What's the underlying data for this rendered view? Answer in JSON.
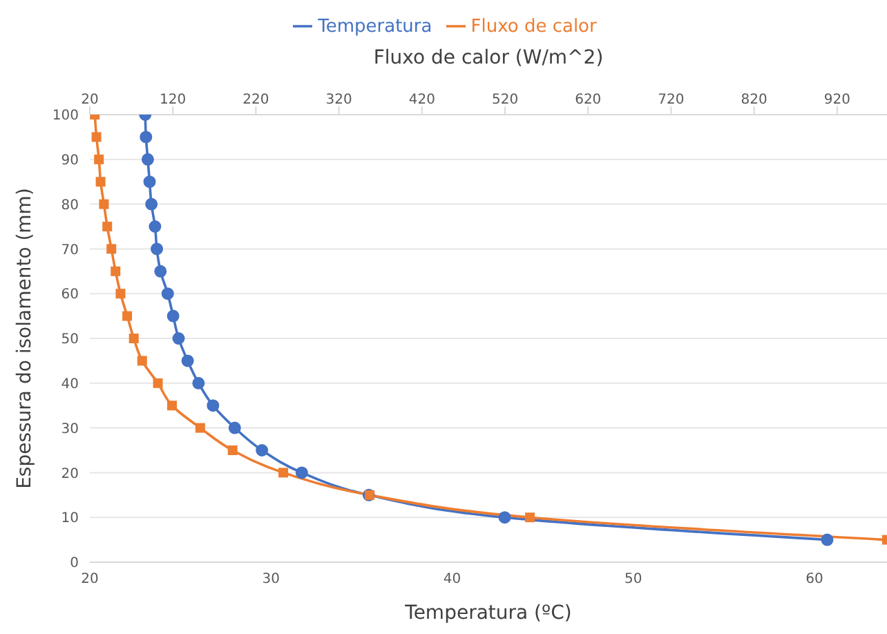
{
  "chart_data": {
    "type": "line",
    "xlabel": "Temperatura (ºC)",
    "x2label": "Fluxo de calor (W/m^2)",
    "ylabel": "Espessura do isolamento (mm)",
    "xlim": [
      20,
      64
    ],
    "xticks": [
      20,
      30,
      40,
      50,
      60
    ],
    "x2lim": [
      20,
      980
    ],
    "x2ticks": [
      20,
      120,
      220,
      320,
      420,
      520,
      620,
      720,
      820,
      920
    ],
    "ylim": [
      0,
      100
    ],
    "yticks": [
      0,
      10,
      20,
      30,
      40,
      50,
      60,
      70,
      80,
      90,
      100
    ],
    "grid": "y",
    "legend": "top",
    "series": [
      {
        "name": "Temperatura",
        "color": "#4472c4",
        "marker": "circle",
        "x": [
          23.06,
          23.1,
          23.2,
          23.3,
          23.4,
          23.6,
          23.7,
          23.9,
          24.3,
          24.6,
          24.9,
          25.4,
          26.0,
          26.8,
          28.0,
          29.5,
          31.7,
          35.4,
          42.9,
          60.7
        ],
        "values": [
          100,
          95,
          90,
          85,
          80,
          75,
          70,
          65,
          60,
          55,
          50,
          45,
          40,
          35,
          30,
          25,
          20,
          15,
          10,
          5
        ]
      },
      {
        "name": "Fluxo de calor",
        "color": "#ed7d31",
        "marker": "square",
        "axis": "x2",
        "x": [
          26,
          28,
          31,
          33,
          37,
          41,
          46,
          51,
          57,
          65,
          73,
          83,
          102,
          119,
          153,
          192,
          253,
          357,
          550,
          980
        ],
        "values": [
          100,
          95,
          90,
          85,
          80,
          75,
          70,
          65,
          60,
          55,
          50,
          45,
          40,
          35,
          30,
          25,
          20,
          15,
          10,
          5
        ]
      }
    ]
  }
}
